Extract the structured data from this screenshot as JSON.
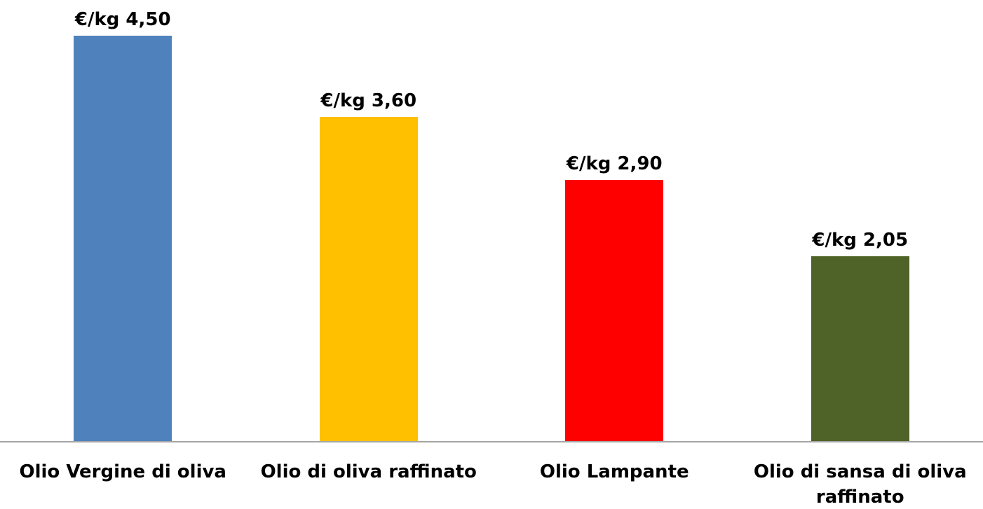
{
  "chart_data": {
    "type": "bar",
    "categories": [
      "Olio Vergine di oliva",
      "Olio di oliva raffinato",
      "Olio Lampante",
      "Olio di sansa di oliva raffinato"
    ],
    "values": [
      4.5,
      3.6,
      2.9,
      2.05
    ],
    "value_labels": [
      "€/kg 4,50",
      "€/kg 3,60",
      "€/kg 2,90",
      "€/kg 2,05"
    ],
    "colors": [
      "#4f81bd",
      "#ffc000",
      "#ff0000",
      "#4f6228"
    ]
  }
}
